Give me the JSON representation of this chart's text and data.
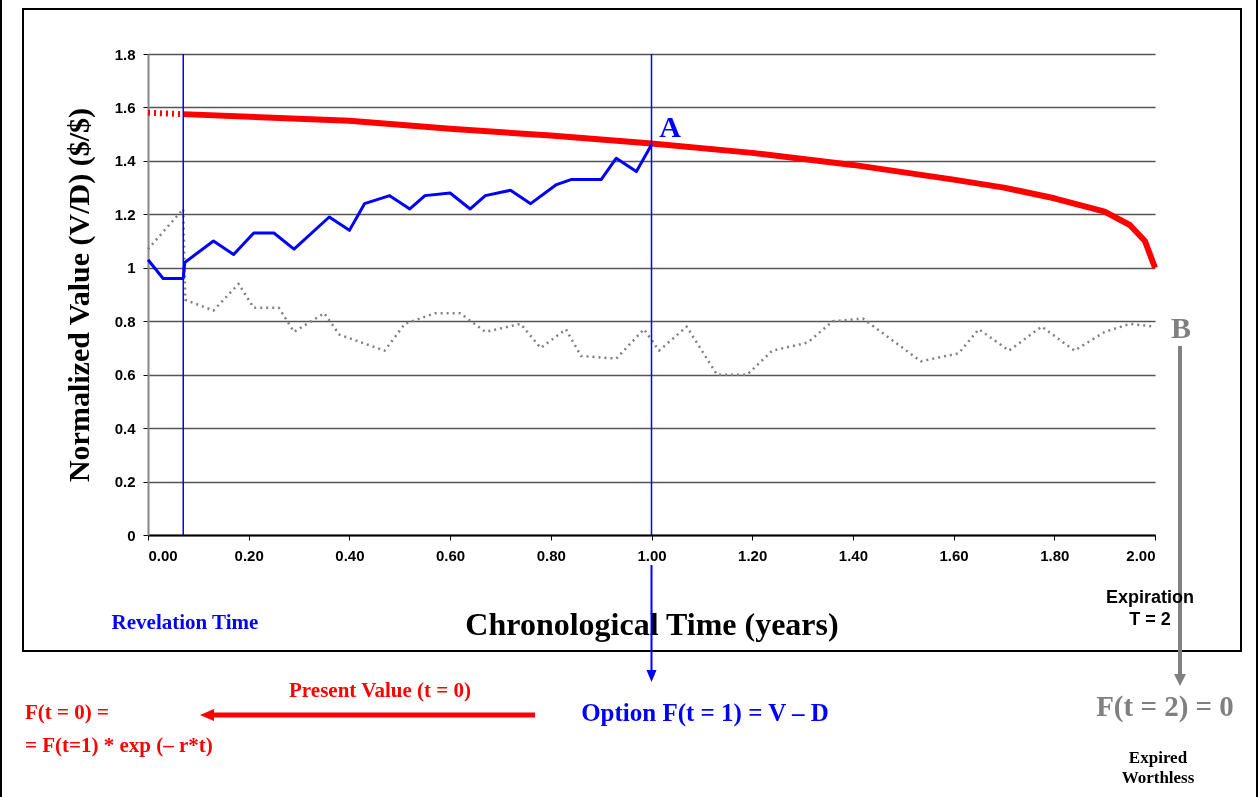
{
  "chart_data": {
    "type": "line",
    "xlabel": "Chronological Time (years)",
    "ylabel": "Normalized Value (V/D) ($/$)",
    "xlim": [
      0,
      2
    ],
    "ylim": [
      0,
      1.8
    ],
    "xticks": [
      {
        "value": 0,
        "label": "0.00"
      },
      {
        "value": 0.2,
        "label": "0.20"
      },
      {
        "value": 0.4,
        "label": "0.40"
      },
      {
        "value": 0.6,
        "label": "0.60"
      },
      {
        "value": 0.8,
        "label": "0.80"
      },
      {
        "value": 1,
        "label": "1.00"
      },
      {
        "value": 1.2,
        "label": "1.20"
      },
      {
        "value": 1.4,
        "label": "1.40"
      },
      {
        "value": 1.6,
        "label": "1.60"
      },
      {
        "value": 1.8,
        "label": "1.80"
      },
      {
        "value": 2,
        "label": "2.00"
      }
    ],
    "yticks": [
      0,
      0.2,
      0.4,
      0.6,
      0.8,
      1,
      1.2,
      1.4,
      1.6,
      1.8
    ],
    "grid": "y",
    "marker": "none",
    "series": [
      {
        "color": "#808080",
        "line_style": "dotted",
        "x": [
          0,
          0.07,
          0.074,
          0.13,
          0.18,
          0.21,
          0.26,
          0.29,
          0.35,
          0.38,
          0.47,
          0.51,
          0.57,
          0.62,
          0.67,
          0.74,
          0.78,
          0.83,
          0.86,
          0.93,
          0.985,
          1.015,
          1.07,
          1.13,
          1.19,
          1.24,
          1.31,
          1.36,
          1.42,
          1.535,
          1.61,
          1.65,
          1.71,
          1.775,
          1.84,
          1.9,
          1.95,
          2
        ],
        "values": [
          1.07,
          1.22,
          0.88,
          0.84,
          0.94,
          0.85,
          0.85,
          0.76,
          0.83,
          0.75,
          0.69,
          0.79,
          0.83,
          0.83,
          0.76,
          0.79,
          0.7,
          0.77,
          0.67,
          0.66,
          0.77,
          0.69,
          0.78,
          0.6,
          0.6,
          0.69,
          0.72,
          0.8,
          0.81,
          0.65,
          0.68,
          0.77,
          0.69,
          0.78,
          0.69,
          0.76,
          0.79,
          0.78
        ]
      },
      {
        "color": "#ff0000",
        "line_style": "dotted",
        "x": [
          0,
          0.07
        ],
        "values": [
          1.58,
          1.575
        ]
      },
      {
        "color": "#ff0000",
        "line_style": "solid",
        "x": [
          0.07,
          0.4,
          0.6,
          0.8,
          1,
          1.2,
          1.4,
          1.6,
          1.7,
          1.8,
          1.9,
          1.95,
          1.98,
          2
        ],
        "values": [
          1.575,
          1.55,
          1.52,
          1.495,
          1.465,
          1.43,
          1.385,
          1.33,
          1.3,
          1.26,
          1.21,
          1.16,
          1.1,
          1
        ]
      },
      {
        "color": "#0000ff",
        "line_style": "solid",
        "x": [
          0,
          0.03,
          0.07,
          0.073,
          0.13,
          0.17,
          0.21,
          0.25,
          0.29,
          0.36,
          0.4,
          0.43,
          0.48,
          0.52,
          0.55,
          0.6,
          0.64,
          0.67,
          0.72,
          0.76,
          0.81,
          0.84,
          0.9,
          0.93,
          0.97,
          1
        ],
        "values": [
          1.03,
          0.96,
          0.96,
          1.02,
          1.1,
          1.05,
          1.13,
          1.13,
          1.07,
          1.19,
          1.14,
          1.24,
          1.27,
          1.22,
          1.27,
          1.28,
          1.22,
          1.27,
          1.29,
          1.24,
          1.31,
          1.33,
          1.33,
          1.41,
          1.36,
          1.46
        ]
      }
    ],
    "ref_lines": [
      {
        "axis": "x",
        "value": 0.07,
        "color": "#0000ff"
      },
      {
        "axis": "x",
        "value": 1,
        "color": "#0000ff"
      }
    ],
    "annotations": [
      "A",
      "B",
      "Revelation Time",
      "Expiration T = 2",
      "Present Value (t = 0)",
      "F(t = 0) =",
      "= F(t=1) * exp (– r*t)",
      "Option F(t = 1) = V – D",
      "F(t = 2) = 0",
      "Expired Worthless"
    ]
  }
}
